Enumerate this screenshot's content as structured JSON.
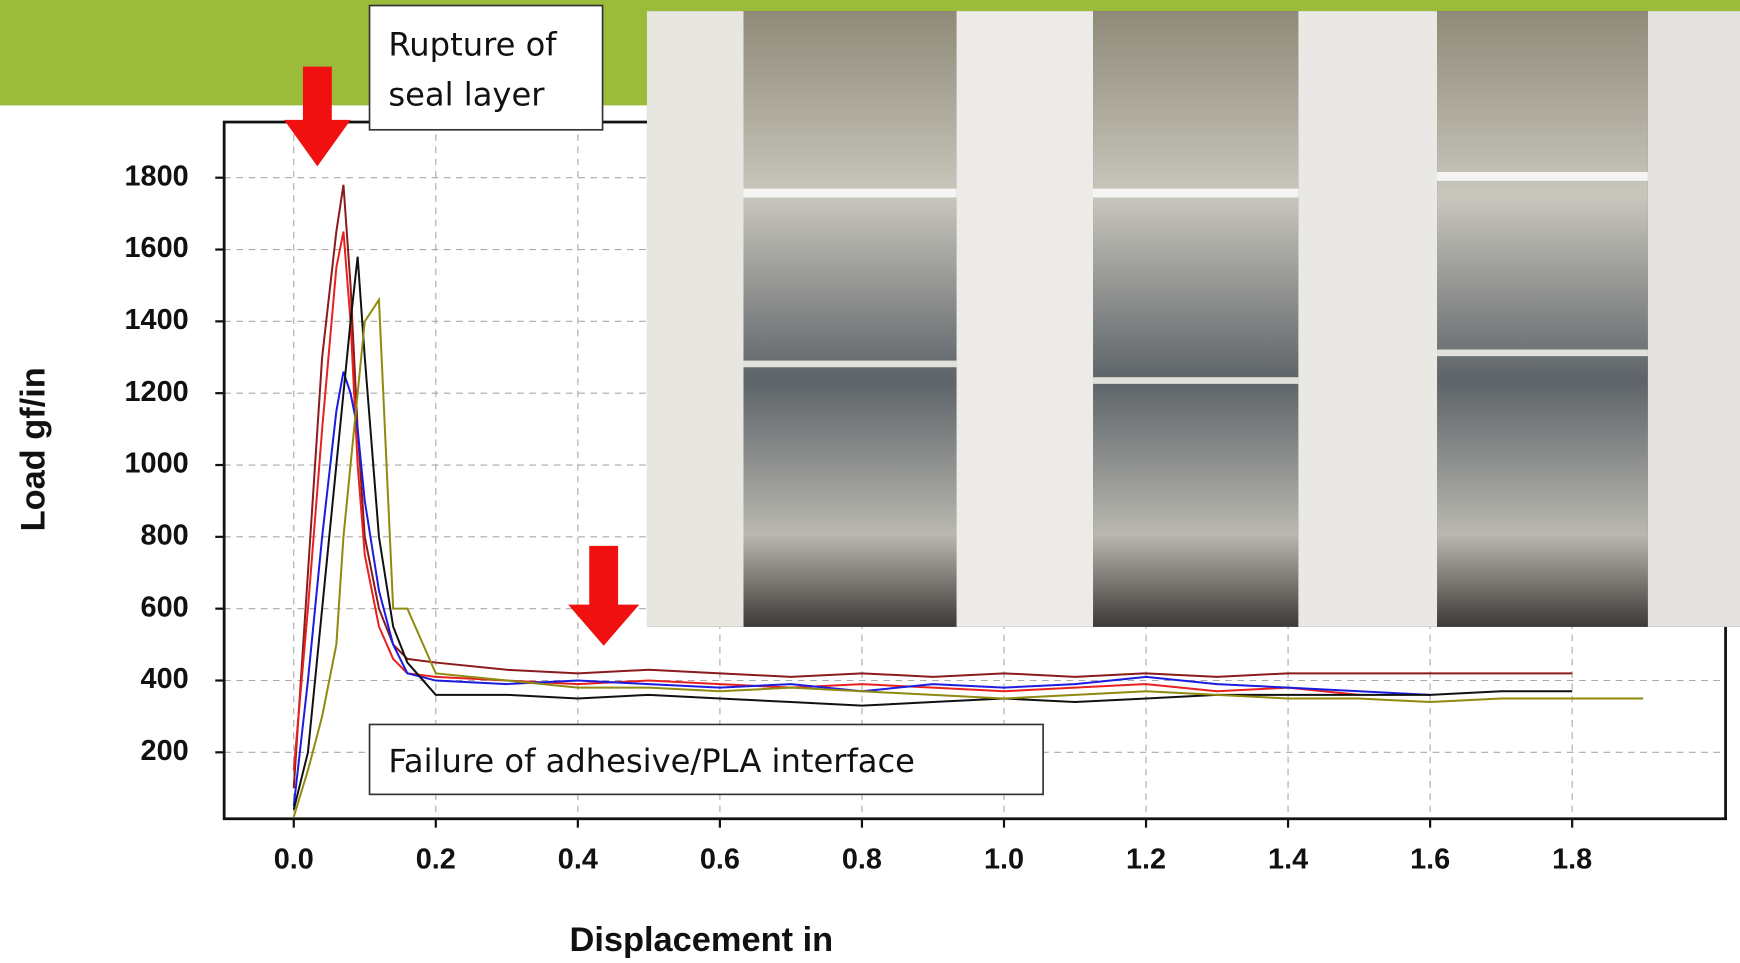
{
  "chart_data": {
    "type": "line",
    "annotations": [
      "Rupture of seal layer",
      "Failure of adhesive/PLA interface"
    ],
    "x_label": "Displacement in",
    "y_label": "Load gf/in",
    "x": [
      0,
      0.02,
      0.04,
      0.06,
      0.07,
      0.08,
      0.09,
      0.1,
      0.12,
      0.14,
      0.16,
      0.2,
      0.3,
      0.4,
      0.5,
      0.6,
      0.7,
      0.8,
      0.9,
      1.0,
      1.1,
      1.2,
      1.3,
      1.4,
      1.5,
      1.6,
      1.7,
      1.8,
      1.9
    ],
    "series": [
      {
        "color": "#8b1a1a",
        "values": [
          100,
          700,
          1300,
          1650,
          1780,
          1500,
          1100,
          800,
          600,
          500,
          460,
          450,
          430,
          420,
          430,
          420,
          410,
          420,
          410,
          420,
          410,
          420,
          410,
          420,
          420,
          420,
          420,
          420,
          null
        ]
      },
      {
        "color": "#e8211f",
        "values": [
          150,
          600,
          1100,
          1550,
          1650,
          1400,
          1000,
          750,
          550,
          460,
          420,
          410,
          400,
          390,
          400,
          390,
          380,
          390,
          380,
          370,
          380,
          390,
          370,
          380,
          360,
          null,
          null,
          null,
          null
        ]
      },
      {
        "color": "#1c1ce0",
        "values": [
          50,
          400,
          800,
          1150,
          1260,
          1200,
          1100,
          900,
          650,
          500,
          420,
          400,
          390,
          400,
          390,
          380,
          390,
          370,
          390,
          380,
          390,
          410,
          390,
          380,
          370,
          360,
          null,
          null,
          null
        ]
      },
      {
        "color": "#111111",
        "values": [
          40,
          200,
          600,
          1000,
          1200,
          1400,
          1580,
          1300,
          800,
          550,
          450,
          360,
          360,
          350,
          360,
          350,
          340,
          330,
          340,
          350,
          340,
          350,
          360,
          360,
          360,
          360,
          370,
          370,
          null
        ]
      },
      {
        "color": "#8f8a10",
        "values": [
          20,
          150,
          300,
          500,
          800,
          1000,
          1200,
          1400,
          1460,
          600,
          600,
          420,
          400,
          380,
          380,
          370,
          380,
          370,
          360,
          350,
          360,
          370,
          360,
          350,
          350,
          340,
          350,
          350,
          350
        ]
      }
    ],
    "xlim": [
      -0.098,
      2.016
    ],
    "ylim": [
      15,
      1955
    ],
    "xticks": [
      {
        "value": 0,
        "label": "0.0"
      },
      0.2,
      0.4,
      0.6,
      0.8,
      {
        "value": 1,
        "label": "1.0"
      },
      1.2,
      1.4,
      1.6,
      1.8
    ],
    "yticks": [
      200,
      400,
      600,
      800,
      1000,
      1200,
      1400,
      1600,
      1800
    ],
    "grid": true
  }
}
